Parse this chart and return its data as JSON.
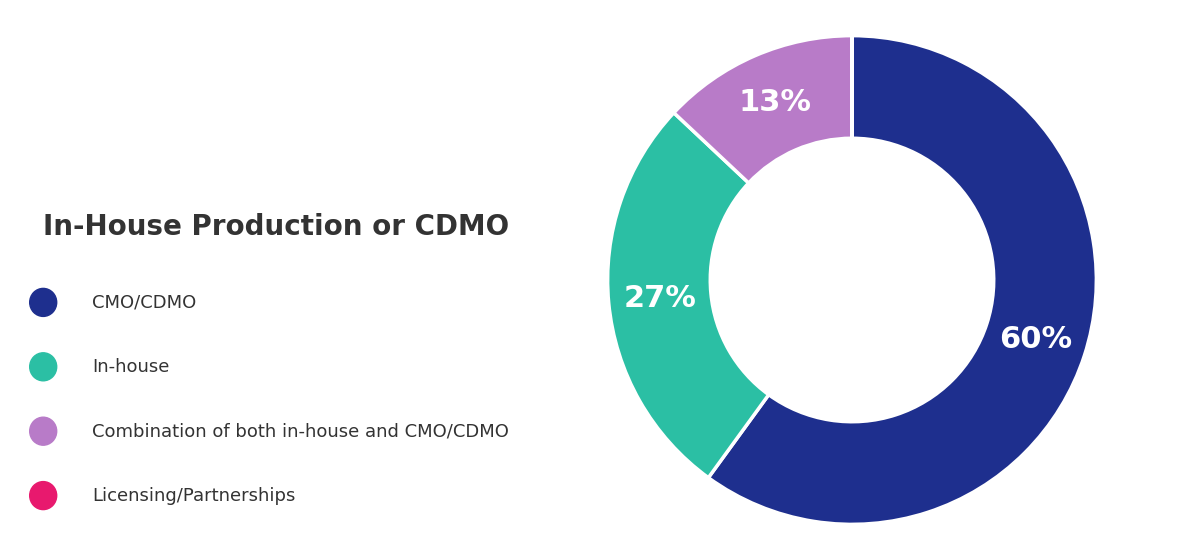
{
  "title": "In-House Production or CDMO",
  "segments": [
    {
      "label": "CMO/CDMO",
      "value": 60,
      "color": "#1e2f8e",
      "pct_label": "60%"
    },
    {
      "label": "In-house",
      "value": 27,
      "color": "#2bbfa4",
      "pct_label": "27%"
    },
    {
      "label": "Combination of both in-house and CMO/CDMO",
      "value": 13,
      "color": "#b87bc8",
      "pct_label": "13%"
    },
    {
      "label": "Licensing/Partnerships",
      "value": 0,
      "color": "#e8196e",
      "pct_label": ""
    }
  ],
  "background_color": "#ffffff",
  "title_color": "#333333",
  "label_color": "#ffffff",
  "title_fontsize": 20,
  "legend_fontsize": 13,
  "pct_fontsize": 22,
  "donut_width": 0.42
}
